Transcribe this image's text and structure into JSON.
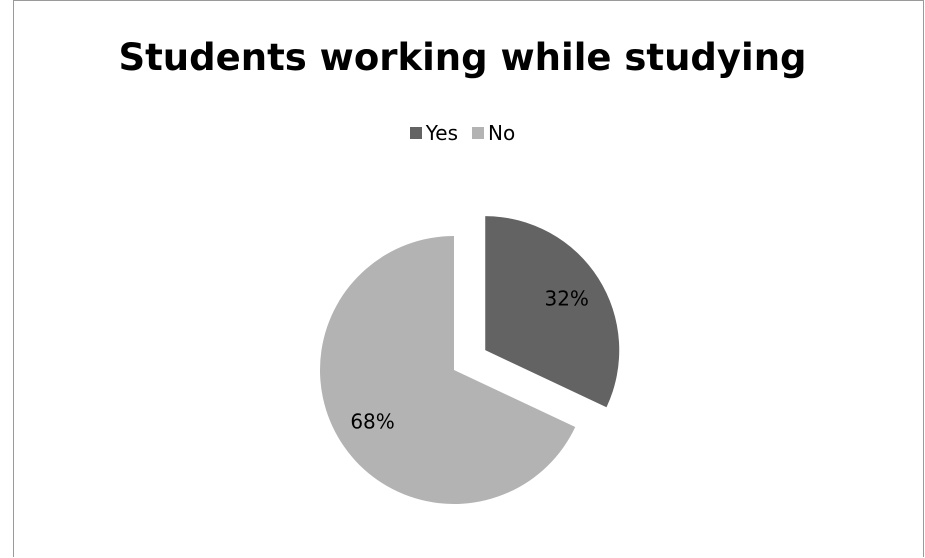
{
  "chart_data": {
    "type": "pie",
    "title": "Students working while studying",
    "legend_position": "top",
    "slices": [
      {
        "name": "Yes",
        "value": 32,
        "label": "32%",
        "color": "#636363",
        "exploded": true
      },
      {
        "name": "No",
        "value": 68,
        "label": "68%",
        "color": "#b3b3b3",
        "exploded": false
      }
    ]
  }
}
